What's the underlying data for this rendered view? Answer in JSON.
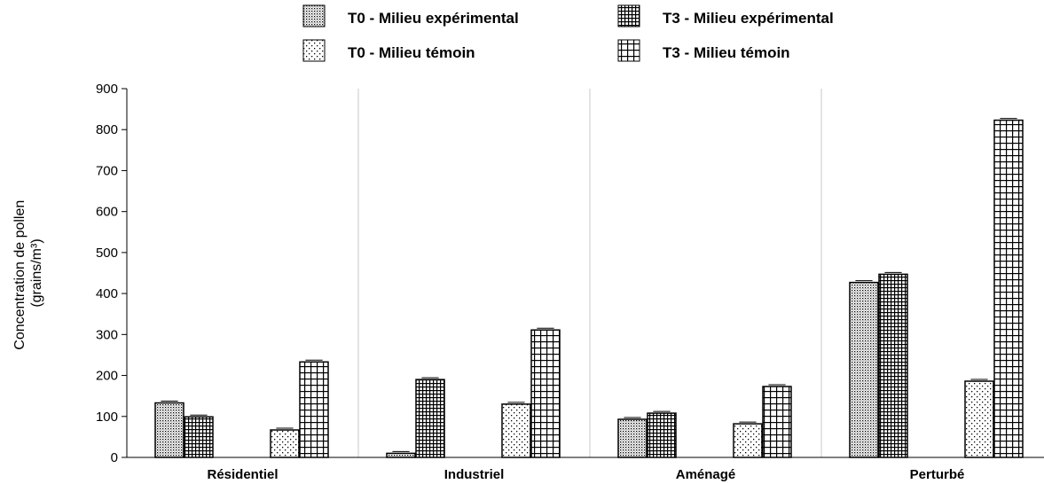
{
  "chart_data": {
    "type": "bar",
    "categories": [
      "Résidentiel",
      "Industriel",
      "Aménagé",
      "Perturbé"
    ],
    "ylim": [
      0,
      900
    ],
    "yticks": [
      0,
      100,
      200,
      300,
      400,
      500,
      600,
      700,
      800,
      900
    ],
    "ylabel_line1": "Concentration de pollen",
    "ylabel_line2": "(grains/m³)",
    "xlabel": "",
    "grid": "vertical category separators",
    "legend_placement": "top",
    "series": [
      {
        "name": "T0 - Milieu expérimental",
        "pattern": "dense-dots",
        "values": [
          133,
          10,
          93,
          427
        ]
      },
      {
        "name": "T3 - Milieu expérimental",
        "pattern": "fine-grid",
        "values": [
          99,
          190,
          108,
          447
        ]
      },
      {
        "name": "T0 - Milieu témoin",
        "pattern": "sparse-dots",
        "values": [
          67,
          130,
          82,
          186
        ]
      },
      {
        "name": "T3 - Milieu témoin",
        "pattern": "coarse-grid",
        "values": [
          233,
          311,
          173,
          823
        ]
      }
    ]
  }
}
